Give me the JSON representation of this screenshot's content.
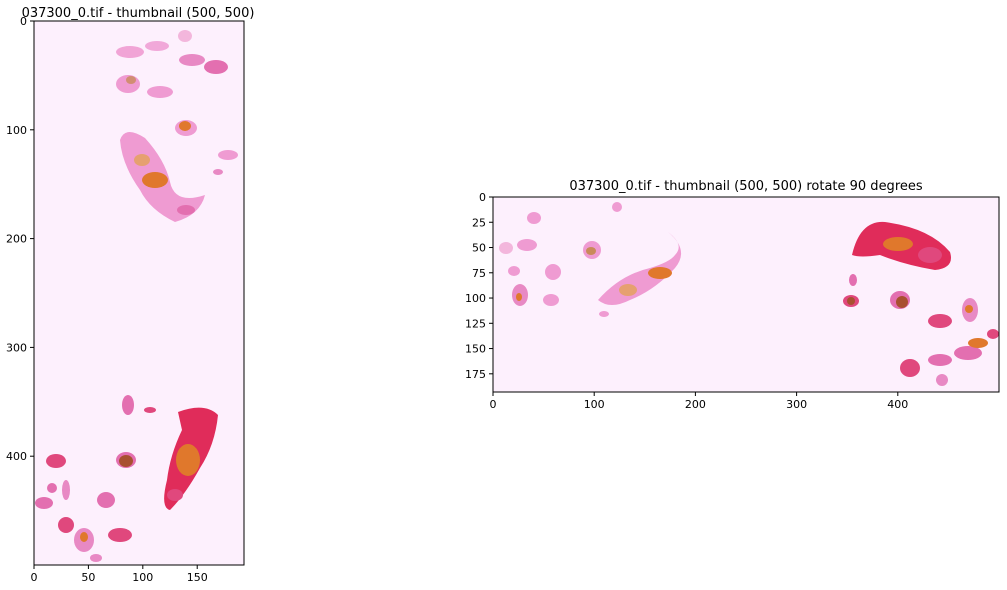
{
  "colors": {
    "background": "#fdf0fd",
    "axis": "#000000",
    "tissue_pink": "#ef9bd2",
    "tissue_magenta": "#e0487d",
    "tissue_red": "#e02c5a",
    "tissue_orange": "#e0782c",
    "tissue_brown": "#a85030"
  },
  "panels": [
    {
      "id": "left",
      "title": "037300_0.tif - thumbnail (500, 500)",
      "image_size": [
        193,
        500
      ],
      "x_ticks": [
        0,
        50,
        100,
        150
      ],
      "y_ticks": [
        0,
        100,
        200,
        300,
        400
      ],
      "xlim": [
        0,
        193
      ],
      "ylim": [
        500,
        0
      ]
    },
    {
      "id": "right",
      "title": "037300_0.tif - thumbnail (500, 500) rotate 90 degrees",
      "image_size": [
        500,
        193
      ],
      "x_ticks": [
        0,
        100,
        200,
        300,
        400
      ],
      "y_ticks": [
        0,
        25,
        50,
        75,
        100,
        125,
        150,
        175
      ],
      "xlim": [
        0,
        500
      ],
      "ylim": [
        193,
        0
      ]
    }
  ]
}
